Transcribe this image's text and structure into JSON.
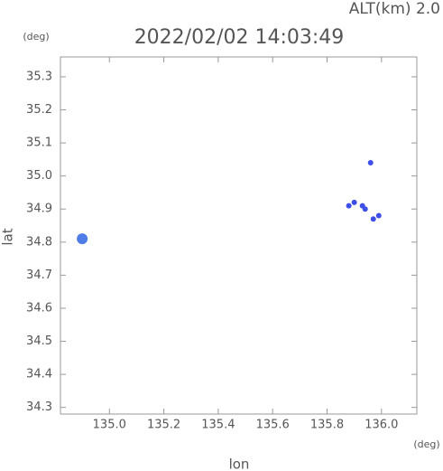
{
  "chart_data": {
    "type": "scatter",
    "title": "2022/02/02 14:03:49",
    "subtitle": "ALT(km) 2.0",
    "y_unit": "(deg)",
    "x_unit": "(deg)",
    "x_label": "lon",
    "y_label": "lat",
    "xlim": [
      134.82,
      136.13
    ],
    "ylim": [
      34.28,
      35.36
    ],
    "xticks": [
      {
        "value": 135,
        "label": "135.0"
      },
      {
        "value": 135.2,
        "label": "135.2"
      },
      {
        "value": 135.4,
        "label": "135.4"
      },
      {
        "value": 135.6,
        "label": "135.6"
      },
      {
        "value": 135.8,
        "label": "135.8"
      },
      {
        "value": 136,
        "label": "136.0"
      }
    ],
    "yticks": [
      34.3,
      34.4,
      34.5,
      34.6,
      34.7,
      34.8,
      34.9,
      {
        "value": 35,
        "label": "35.0"
      },
      35.1,
      35.2,
      35.3
    ],
    "series": [
      {
        "color": "#4f7de8",
        "x": [
          134.9
        ],
        "y": [
          34.81
        ]
      },
      {
        "color": "#3d4fe6",
        "x": [
          135.96,
          135.9,
          135.93,
          135.88,
          135.97,
          135.99,
          135.94
        ],
        "y": [
          35.04,
          34.92,
          34.91,
          34.91,
          34.87,
          34.88,
          34.9
        ]
      }
    ]
  }
}
